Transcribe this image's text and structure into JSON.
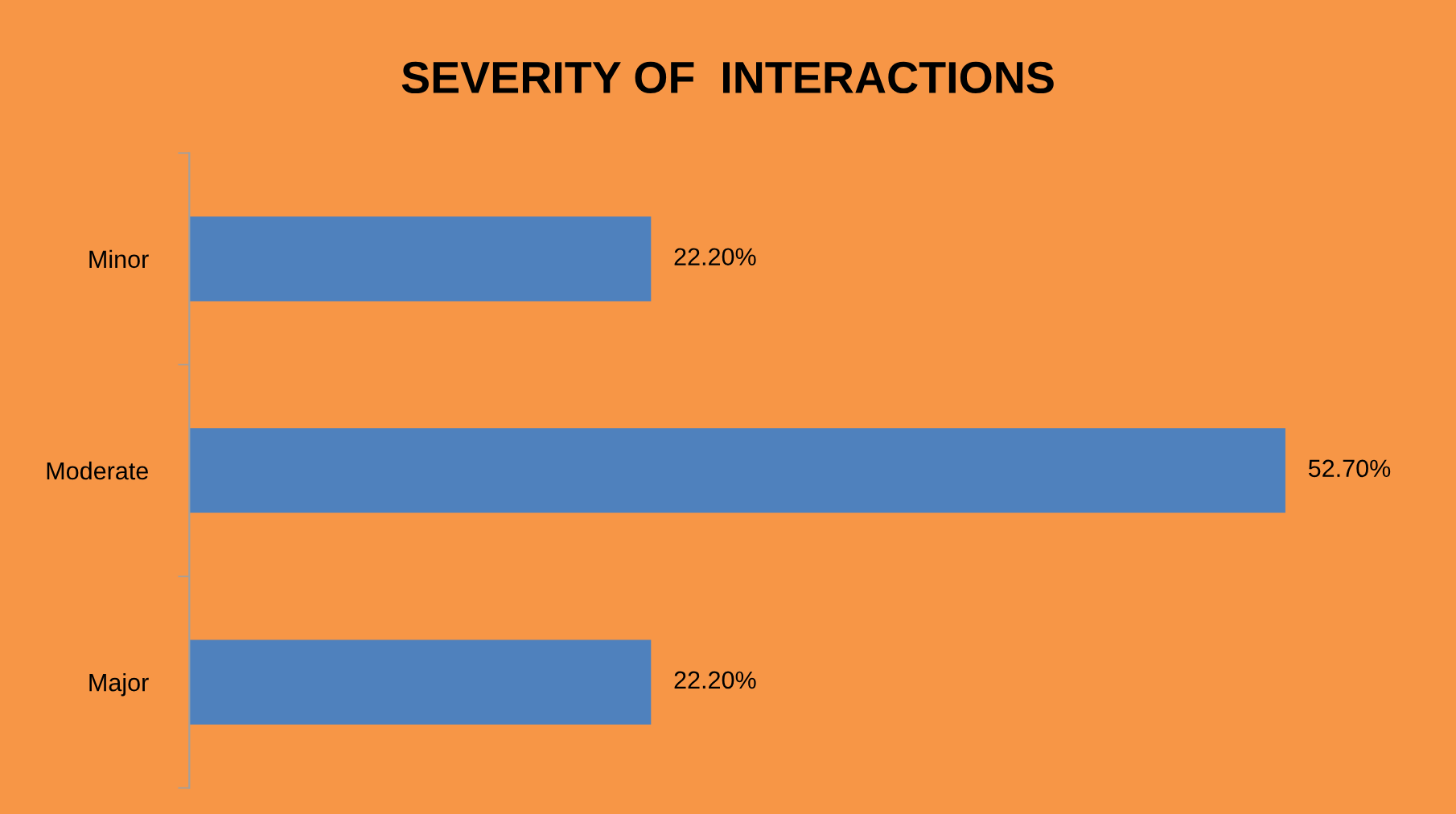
{
  "chart_data": {
    "type": "bar",
    "orientation": "horizontal",
    "title": "SEVERITY OF  INTERACTIONS",
    "categories": [
      "Minor",
      "Moderate",
      "Major"
    ],
    "values": [
      22.2,
      52.7,
      22.2
    ],
    "value_labels": [
      "22.20%",
      "52.70%",
      "22.20%"
    ],
    "color": "#4f81bd",
    "tick_labels": "y"
  }
}
